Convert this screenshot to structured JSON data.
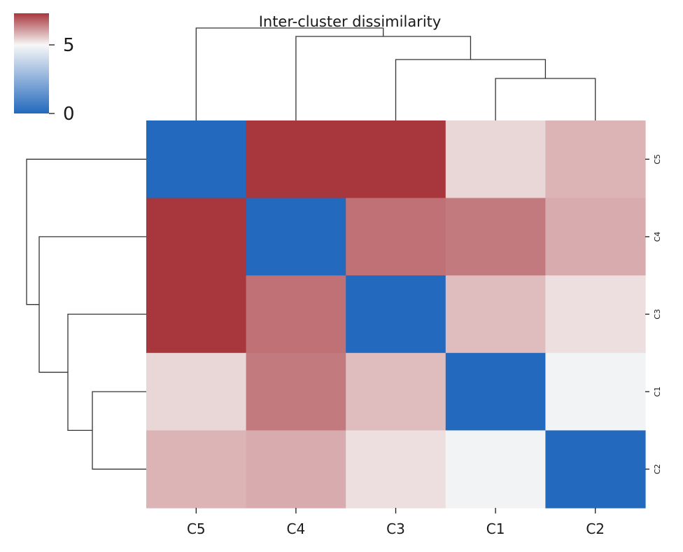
{
  "chart_data": {
    "type": "heatmap",
    "title": "Inter-cluster dissimilarity",
    "row_labels": [
      "C5",
      "C4",
      "C3",
      "C1",
      "C2"
    ],
    "col_labels": [
      "C5",
      "C4",
      "C3",
      "C1",
      "C2"
    ],
    "values": [
      [
        0.0,
        7.3,
        7.3,
        5.4,
        5.8
      ],
      [
        7.3,
        0.0,
        6.6,
        6.5,
        5.9
      ],
      [
        7.3,
        6.6,
        0.0,
        5.7,
        5.3
      ],
      [
        5.4,
        6.5,
        5.7,
        0.0,
        4.85
      ],
      [
        5.8,
        5.9,
        5.3,
        4.85,
        0.0
      ]
    ],
    "colormap": [
      "#2369bd",
      "#f7f7f7",
      "#a8373d"
    ],
    "colorbar": {
      "vmin": 0,
      "vmid": 5,
      "vmax": 7.3,
      "ticks": [
        "0",
        "5"
      ]
    },
    "dendrogram_top": [
      {
        "a": 3,
        "b": 4,
        "height": 4.85
      },
      {
        "a": 2,
        "b": "m0",
        "height": 5.7
      },
      {
        "a": 1,
        "b": "m1",
        "height": 6.6
      },
      {
        "a": 0,
        "b": "m2",
        "height": 7.3
      }
    ],
    "dendrogram_left": [
      {
        "a": 3,
        "b": 4,
        "height": 4.85
      },
      {
        "a": 2,
        "b": "m0",
        "height": 5.7
      },
      {
        "a": 1,
        "b": "m1",
        "height": 6.6
      },
      {
        "a": 0,
        "b": "m2",
        "height": 7.3
      }
    ]
  }
}
